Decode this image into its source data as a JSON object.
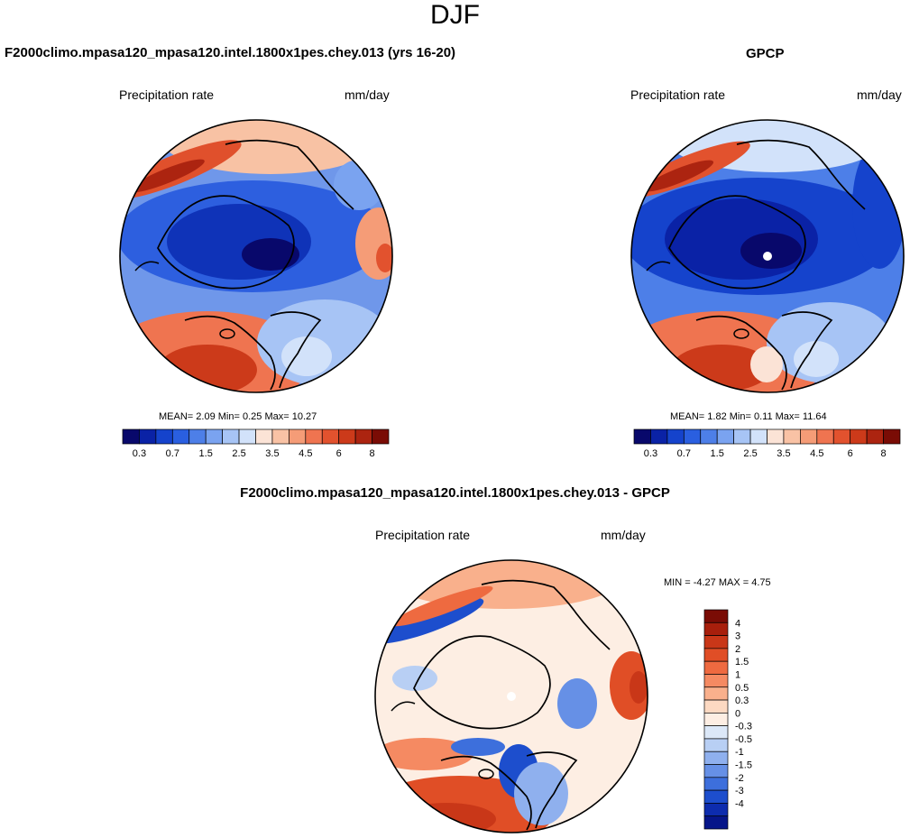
{
  "season": "DJF",
  "panels": {
    "model": {
      "title": "F2000climo.mpasa120_mpasa120.intel.1800x1pes.chey.013 (yrs 16-20)",
      "variable": "Precipitation rate",
      "units": "mm/day",
      "stats": {
        "mean_label": "MEAN=",
        "mean": "2.09",
        "min_label": "Min=",
        "min": "0.25",
        "max_label": "Max=",
        "max": "10.27"
      }
    },
    "obs": {
      "title": "GPCP",
      "variable": "Precipitation rate",
      "units": "mm/day",
      "stats": {
        "mean_label": "MEAN=",
        "mean": "1.82",
        "min_label": "Min=",
        "min": "0.11",
        "max_label": "Max=",
        "max": "11.64"
      }
    },
    "diff": {
      "title": "F2000climo.mpasa120_mpasa120.intel.1800x1pes.chey.013 - GPCP",
      "variable": "Precipitation rate",
      "units": "mm/day",
      "stats": {
        "min_label": "MIN =",
        "min": "-4.27",
        "max_label": "MAX =",
        "max": "4.75"
      }
    }
  },
  "colorbars": {
    "absolute": {
      "ticks": [
        "0.3",
        "0.7",
        "1.5",
        "2.5",
        "3.5",
        "4.5",
        "6",
        "8"
      ],
      "colors": [
        "#08086b",
        "#0a22a6",
        "#1543cc",
        "#2a5fe0",
        "#4d7fe8",
        "#7aa3f0",
        "#a7c4f5",
        "#d2e2fa",
        "#fbe3d6",
        "#f9c2a5",
        "#f59c77",
        "#ef7450",
        "#e2522e",
        "#cc3a1a",
        "#ac2410",
        "#7a0c05"
      ]
    },
    "difference": {
      "ticks": [
        "4",
        "3",
        "2",
        "1.5",
        "1",
        "0.5",
        "0.3",
        "0",
        "-0.3",
        "-0.5",
        "-1",
        "-1.5",
        "-2",
        "-3",
        "-4"
      ],
      "colors": [
        "#7a0c05",
        "#a81f0c",
        "#c93718",
        "#e04e26",
        "#ee6a40",
        "#f58a62",
        "#f9b08c",
        "#fcd9c2",
        "#fdeee3",
        "#dce8f8",
        "#b8cff4",
        "#8fb0ee",
        "#6690e6",
        "#3d6fdc",
        "#1d4ecd",
        "#0d2cae",
        "#061589"
      ]
    }
  }
}
